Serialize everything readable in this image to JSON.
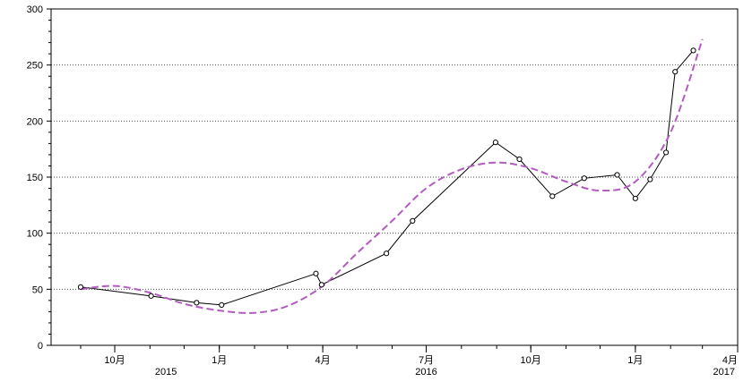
{
  "chart_data": {
    "type": "line",
    "title": "",
    "xlabel": "",
    "ylabel": "",
    "ylim": [
      0,
      300
    ],
    "y_ticks": [
      "0",
      "50",
      "100",
      "150",
      "200",
      "250",
      "300"
    ],
    "x_range": [
      "2015-08-06",
      "2017-04-01"
    ],
    "x_month_ticks": [
      {
        "date": "2015-10-01",
        "label": "10月"
      },
      {
        "date": "2016-01-01",
        "label": "1月"
      },
      {
        "date": "2016-04-01",
        "label": "4月"
      },
      {
        "date": "2016-07-01",
        "label": "7月"
      },
      {
        "date": "2016-10-01",
        "label": "10月"
      },
      {
        "date": "2017-01-01",
        "label": "1月"
      },
      {
        "date": "2017-04-01",
        "label": "4月"
      }
    ],
    "x_year_labels": [
      {
        "date": "2015-11-15",
        "label": "2015"
      },
      {
        "date": "2016-07-01",
        "label": "2016"
      },
      {
        "date": "2017-03-20",
        "label": "2017"
      }
    ],
    "grid": {
      "horizontal": true,
      "style": "dotted"
    },
    "series": [
      {
        "kind": "observed",
        "color": "#000000",
        "marker": "open-circle",
        "x": [
          "2015-09-01",
          "2015-11-02",
          "2015-12-12",
          "2016-01-03",
          "2016-03-26",
          "2016-03-31",
          "2016-05-27",
          "2016-06-19",
          "2016-08-31",
          "2016-09-21",
          "2016-10-20",
          "2016-11-17",
          "2016-12-16",
          "2017-01-01",
          "2017-01-14",
          "2017-01-28",
          "2017-02-05",
          "2017-02-21"
        ],
        "values": [
          52,
          44,
          38,
          36,
          64,
          54,
          82,
          111,
          181,
          166,
          133,
          149,
          152,
          131,
          148,
          172,
          244,
          263
        ]
      },
      {
        "kind": "smoothed-fit",
        "color": "#b35cc0",
        "style": "dashed",
        "x": [
          "2015-09-01",
          "2015-10-01",
          "2015-11-01",
          "2015-12-01",
          "2016-01-01",
          "2016-02-01",
          "2016-03-01",
          "2016-04-01",
          "2016-05-01",
          "2016-06-01",
          "2016-07-01",
          "2016-08-01",
          "2016-09-01",
          "2016-10-01",
          "2016-11-01",
          "2016-12-01",
          "2017-01-01",
          "2017-02-01",
          "2017-03-01"
        ],
        "values": [
          50,
          53,
          47,
          37,
          31,
          29,
          35,
          53,
          82,
          111,
          140,
          157,
          163,
          158,
          146,
          138,
          146,
          190,
          273
        ]
      }
    ]
  }
}
